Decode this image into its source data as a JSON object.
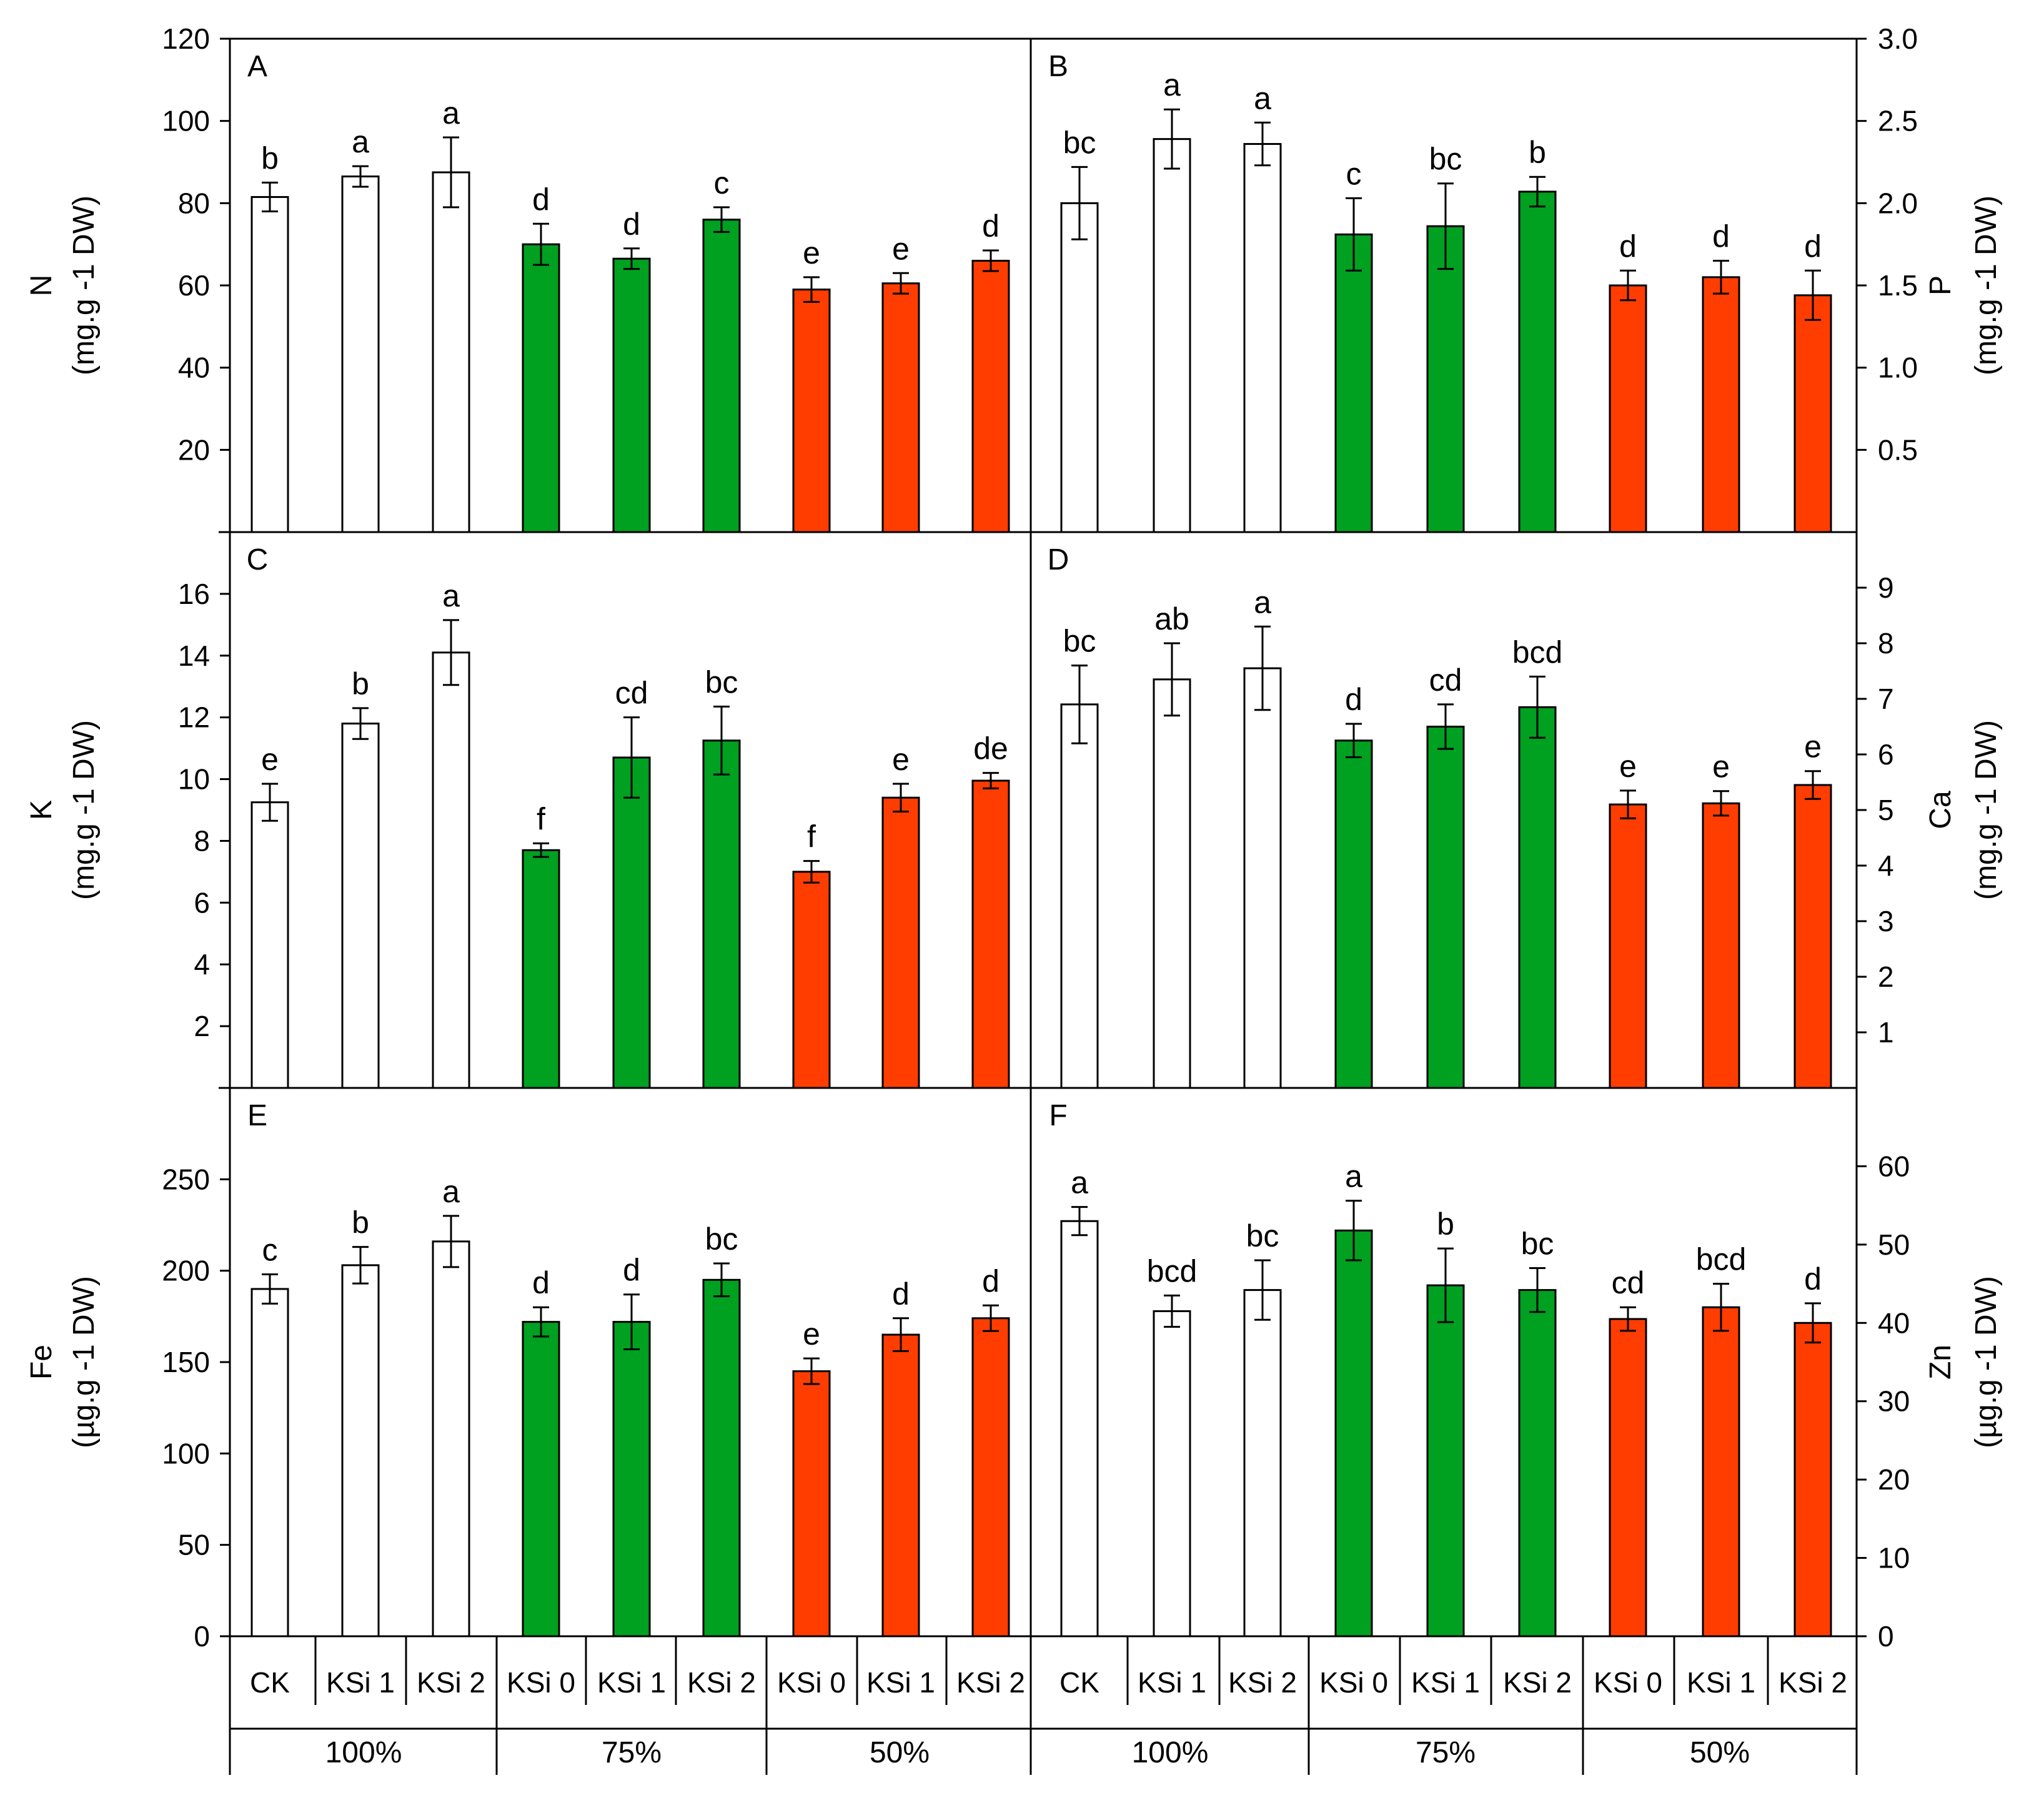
{
  "chart_data": [
    {
      "panel": "A",
      "type": "bar",
      "ylabel_element": "N",
      "ylabel_unit": "(mg.g -1 DW)",
      "axis_side": "left",
      "ylim": [
        0,
        120
      ],
      "yticks": [
        20,
        40,
        60,
        80,
        100,
        120
      ],
      "bars": [
        {
          "value": 81.5,
          "err": 3.5,
          "sig": "b",
          "color": "#FFFFFF"
        },
        {
          "value": 86.5,
          "err": 2.5,
          "sig": "a",
          "color": "#FFFFFF"
        },
        {
          "value": 87.5,
          "err": 8.5,
          "sig": "a",
          "color": "#FFFFFF"
        },
        {
          "value": 70,
          "err": 5,
          "sig": "d",
          "color": "#00A020"
        },
        {
          "value": 66.5,
          "err": 2.5,
          "sig": "d",
          "color": "#00A020"
        },
        {
          "value": 76,
          "err": 3,
          "sig": "c",
          "color": "#00A020"
        },
        {
          "value": 59,
          "err": 3,
          "sig": "e",
          "color": "#FF3D00"
        },
        {
          "value": 60.5,
          "err": 2.5,
          "sig": "e",
          "color": "#FF3D00"
        },
        {
          "value": 66,
          "err": 2.5,
          "sig": "d",
          "color": "#FF3D00"
        }
      ]
    },
    {
      "panel": "B",
      "type": "bar",
      "ylabel_element": "P",
      "ylabel_unit": "(mg.g -1 DW)",
      "axis_side": "right",
      "ylim": [
        0,
        3.0
      ],
      "yticks": [
        0.5,
        1.0,
        1.5,
        2.0,
        2.5,
        3.0
      ],
      "bars": [
        {
          "value": 2.0,
          "err": 0.22,
          "sig": "bc",
          "color": "#FFFFFF"
        },
        {
          "value": 2.39,
          "err": 0.18,
          "sig": "a",
          "color": "#FFFFFF"
        },
        {
          "value": 2.36,
          "err": 0.13,
          "sig": "a",
          "color": "#FFFFFF"
        },
        {
          "value": 1.81,
          "err": 0.22,
          "sig": "c",
          "color": "#00A020"
        },
        {
          "value": 1.86,
          "err": 0.26,
          "sig": "bc",
          "color": "#00A020"
        },
        {
          "value": 2.07,
          "err": 0.09,
          "sig": "b",
          "color": "#00A020"
        },
        {
          "value": 1.5,
          "err": 0.09,
          "sig": "d",
          "color": "#FF3D00"
        },
        {
          "value": 1.55,
          "err": 0.1,
          "sig": "d",
          "color": "#FF3D00"
        },
        {
          "value": 1.44,
          "err": 0.15,
          "sig": "d",
          "color": "#FF3D00"
        }
      ]
    },
    {
      "panel": "C",
      "type": "bar",
      "ylabel_element": "K",
      "ylabel_unit": "(mg.g -1 DW)",
      "axis_side": "left",
      "ylim": [
        0,
        18
      ],
      "yticks": [
        2,
        4,
        6,
        8,
        10,
        12,
        14,
        16
      ],
      "bars": [
        {
          "value": 9.25,
          "err": 0.6,
          "sig": "e",
          "color": "#FFFFFF"
        },
        {
          "value": 11.8,
          "err": 0.5,
          "sig": "b",
          "color": "#FFFFFF"
        },
        {
          "value": 14.1,
          "err": 1.05,
          "sig": "a",
          "color": "#FFFFFF"
        },
        {
          "value": 7.7,
          "err": 0.22,
          "sig": "f",
          "color": "#00A020"
        },
        {
          "value": 10.7,
          "err": 1.3,
          "sig": "cd",
          "color": "#00A020"
        },
        {
          "value": 11.25,
          "err": 1.1,
          "sig": "bc",
          "color": "#00A020"
        },
        {
          "value": 7.0,
          "err": 0.35,
          "sig": "f",
          "color": "#FF3D00"
        },
        {
          "value": 9.4,
          "err": 0.45,
          "sig": "e",
          "color": "#FF3D00"
        },
        {
          "value": 9.95,
          "err": 0.25,
          "sig": "de",
          "color": "#FF3D00"
        }
      ]
    },
    {
      "panel": "D",
      "type": "bar",
      "ylabel_element": "Ca",
      "ylabel_unit": "(mg.g -1 DW)",
      "axis_side": "right",
      "ylim": [
        0,
        10
      ],
      "yticks": [
        1,
        2,
        3,
        4,
        5,
        6,
        7,
        8,
        9
      ],
      "bars": [
        {
          "value": 6.9,
          "err": 0.7,
          "sig": "bc",
          "color": "#FFFFFF"
        },
        {
          "value": 7.35,
          "err": 0.65,
          "sig": "ab",
          "color": "#FFFFFF"
        },
        {
          "value": 7.55,
          "err": 0.75,
          "sig": "a",
          "color": "#FFFFFF"
        },
        {
          "value": 6.25,
          "err": 0.3,
          "sig": "d",
          "color": "#00A020"
        },
        {
          "value": 6.5,
          "err": 0.4,
          "sig": "cd",
          "color": "#00A020"
        },
        {
          "value": 6.85,
          "err": 0.55,
          "sig": "bcd",
          "color": "#00A020"
        },
        {
          "value": 5.1,
          "err": 0.25,
          "sig": "e",
          "color": "#FF3D00"
        },
        {
          "value": 5.12,
          "err": 0.22,
          "sig": "e",
          "color": "#FF3D00"
        },
        {
          "value": 5.45,
          "err": 0.25,
          "sig": "e",
          "color": "#FF3D00"
        }
      ]
    },
    {
      "panel": "E",
      "type": "bar",
      "ylabel_element": "Fe",
      "ylabel_unit": "(µg.g -1 DW)",
      "axis_side": "left",
      "ylim": [
        0,
        300
      ],
      "yticks": [
        0,
        50,
        100,
        150,
        200,
        250
      ],
      "bars": [
        {
          "value": 190,
          "err": 8,
          "sig": "c",
          "color": "#FFFFFF"
        },
        {
          "value": 203,
          "err": 10,
          "sig": "b",
          "color": "#FFFFFF"
        },
        {
          "value": 216,
          "err": 14,
          "sig": "a",
          "color": "#FFFFFF"
        },
        {
          "value": 172,
          "err": 8,
          "sig": "d",
          "color": "#00A020"
        },
        {
          "value": 172,
          "err": 15,
          "sig": "d",
          "color": "#00A020"
        },
        {
          "value": 195,
          "err": 9,
          "sig": "bc",
          "color": "#00A020"
        },
        {
          "value": 145,
          "err": 7,
          "sig": "e",
          "color": "#FF3D00"
        },
        {
          "value": 165,
          "err": 9,
          "sig": "d",
          "color": "#FF3D00"
        },
        {
          "value": 174,
          "err": 7,
          "sig": "d",
          "color": "#FF3D00"
        }
      ]
    },
    {
      "panel": "F",
      "type": "bar",
      "ylabel_element": "Zn",
      "ylabel_unit": "(µg.g -1 DW)",
      "axis_side": "right",
      "ylim": [
        0,
        70
      ],
      "yticks": [
        0,
        10,
        20,
        30,
        40,
        50,
        60
      ],
      "bars": [
        {
          "value": 53,
          "err": 1.8,
          "sig": "a",
          "color": "#FFFFFF"
        },
        {
          "value": 41.5,
          "err": 2,
          "sig": "bcd",
          "color": "#FFFFFF"
        },
        {
          "value": 44.2,
          "err": 3.8,
          "sig": "bc",
          "color": "#FFFFFF"
        },
        {
          "value": 51.8,
          "err": 3.8,
          "sig": "a",
          "color": "#00A020"
        },
        {
          "value": 44.8,
          "err": 4.7,
          "sig": "b",
          "color": "#00A020"
        },
        {
          "value": 44.2,
          "err": 2.8,
          "sig": "bc",
          "color": "#00A020"
        },
        {
          "value": 40.5,
          "err": 1.5,
          "sig": "cd",
          "color": "#FF3D00"
        },
        {
          "value": 42,
          "err": 3,
          "sig": "bcd",
          "color": "#FF3D00"
        },
        {
          "value": 40,
          "err": 2.5,
          "sig": "d",
          "color": "#FF3D00"
        }
      ]
    }
  ],
  "categories": [
    "CK",
    "KSi 1",
    "KSi 2",
    "KSi 0",
    "KSi 1",
    "KSi 2",
    "KSi 0",
    "KSi 1",
    "KSi 2"
  ],
  "groups": [
    "100%",
    "75%",
    "50%"
  ],
  "colors": {
    "control": "#FFFFFF",
    "level75": "#00A020",
    "level50": "#FF3D00",
    "axis": "#000000"
  }
}
